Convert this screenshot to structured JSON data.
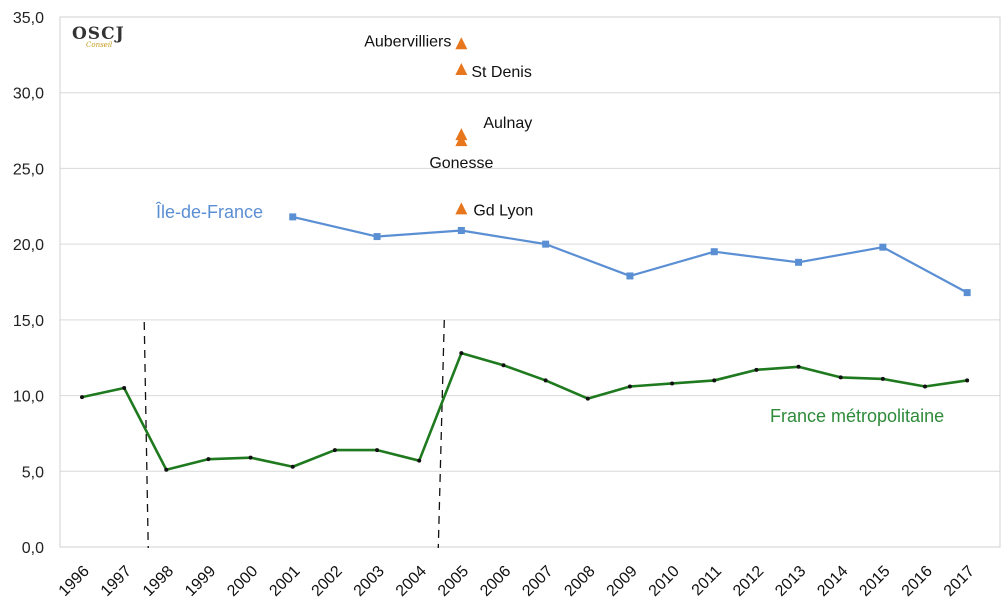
{
  "logo": {
    "text": "OSCJ",
    "subtext": "Conseil"
  },
  "chart_data": {
    "type": "line",
    "ylim": [
      0,
      35
    ],
    "yticks": [
      0,
      5,
      10,
      15,
      20,
      25,
      30,
      35
    ],
    "ytick_labels": [
      "0,0",
      "5,0",
      "10,0",
      "15,0",
      "20,0",
      "25,0",
      "30,0",
      "35,0"
    ],
    "categories": [
      "1996",
      "1997",
      "1998",
      "1999",
      "2000",
      "2001",
      "2002",
      "2003",
      "2004",
      "2005",
      "2006",
      "2007",
      "2008",
      "2009",
      "2010",
      "2011",
      "2012",
      "2013",
      "2014",
      "2015",
      "2016",
      "2017"
    ],
    "grid": "horizontal",
    "series": [
      {
        "name": "Île-de-France",
        "color": "#5b8fd4",
        "marker": "square",
        "points": [
          {
            "x": "2001",
            "y": 21.8
          },
          {
            "x": "2003",
            "y": 20.5
          },
          {
            "x": "2005",
            "y": 20.9
          },
          {
            "x": "2007",
            "y": 20.0
          },
          {
            "x": "2009",
            "y": 17.9
          },
          {
            "x": "2011",
            "y": 19.5
          },
          {
            "x": "2013",
            "y": 18.8
          },
          {
            "x": "2015",
            "y": 19.8
          },
          {
            "x": "2017",
            "y": 16.8
          }
        ]
      },
      {
        "name": "France métropolitaine",
        "color": "#1f7a1f",
        "marker": "dot",
        "points": [
          {
            "x": "1996",
            "y": 9.9
          },
          {
            "x": "1997",
            "y": 10.5
          },
          {
            "x": "1998",
            "y": 5.1
          },
          {
            "x": "1999",
            "y": 5.8
          },
          {
            "x": "2000",
            "y": 5.9
          },
          {
            "x": "2001",
            "y": 5.3
          },
          {
            "x": "2002",
            "y": 6.4
          },
          {
            "x": "2003",
            "y": 6.4
          },
          {
            "x": "2004",
            "y": 5.7
          },
          {
            "x": "2005",
            "y": 12.8
          },
          {
            "x": "2006",
            "y": 12.0
          },
          {
            "x": "2007",
            "y": 11.0
          },
          {
            "x": "2008",
            "y": 9.8
          },
          {
            "x": "2009",
            "y": 10.6
          },
          {
            "x": "2010",
            "y": 10.8
          },
          {
            "x": "2011",
            "y": 11.0
          },
          {
            "x": "2012",
            "y": 11.7
          },
          {
            "x": "2013",
            "y": 11.9
          },
          {
            "x": "2014",
            "y": 11.2
          },
          {
            "x": "2015",
            "y": 11.1
          },
          {
            "x": "2016",
            "y": 10.6
          },
          {
            "x": "2017",
            "y": 11.0
          }
        ]
      }
    ],
    "points_2005": {
      "color": "#e8761c",
      "marker": "triangle",
      "items": [
        {
          "label": "Aubervilliers",
          "x": "2005",
          "y": 33.2
        },
        {
          "label": "St Denis",
          "x": "2005",
          "y": 31.5
        },
        {
          "label": "Aulnay",
          "x": "2005",
          "y": 27.2
        },
        {
          "label": "Gonesse",
          "x": "2005",
          "y": 26.8
        },
        {
          "label": "Gd Lyon",
          "x": "2005",
          "y": 22.3
        }
      ]
    },
    "break_markers": [
      "1997-1998",
      "2004-2005"
    ]
  }
}
